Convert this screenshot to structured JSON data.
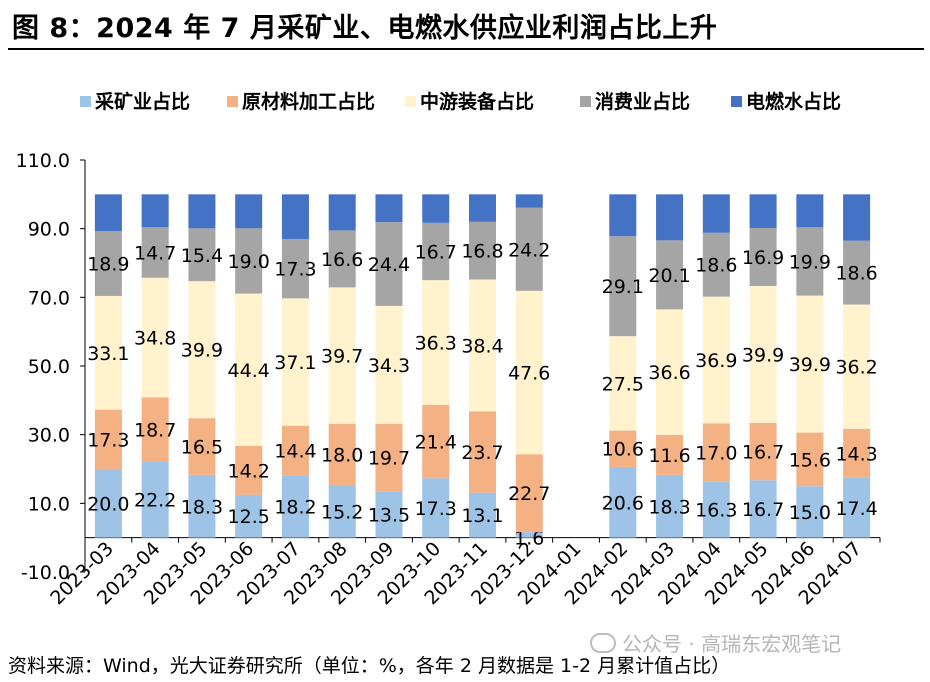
{
  "header": {
    "title": "图 8：2024 年 7 月采矿业、电燃水供应业利润占比上升"
  },
  "footer": {
    "source": "资料来源：Wind，光大证券研究所（单位：%，各年 2 月数据是 1-2 月累计值占比）",
    "watermark": "公众号 · 高瑞东宏观笔记"
  },
  "chart_data": {
    "type": "bar",
    "stacked": true,
    "title": "",
    "xlabel": "",
    "ylabel": "",
    "ylim": [
      -10.0,
      110.0
    ],
    "yticks": [
      "110.0",
      "90.0",
      "70.0",
      "50.0",
      "30.0",
      "10.0",
      "-10.0"
    ],
    "ytick_values": [
      110,
      90,
      70,
      50,
      30,
      10,
      -10
    ],
    "legend_position": "top",
    "categories": [
      "2023-03",
      "2023-04",
      "2023-05",
      "2023-06",
      "2023-07",
      "2023-08",
      "2023-09",
      "2023-10",
      "2023-11",
      "2023-12",
      "2024-01",
      "2024-02",
      "2024-03",
      "2024-04",
      "2024-05",
      "2024-06",
      "2024-07"
    ],
    "series": [
      {
        "name": "采矿业占比",
        "color": "#9dc3e6",
        "values": [
          20.0,
          22.2,
          18.3,
          12.5,
          18.2,
          15.2,
          13.5,
          17.3,
          13.1,
          1.6,
          null,
          20.6,
          18.3,
          16.3,
          16.7,
          15.0,
          17.4
        ],
        "labels": [
          "20.0",
          "22.2",
          "18.3",
          "12.5",
          "18.2",
          "15.2",
          "13.5",
          "17.3",
          "13.1",
          "1.6",
          "",
          "20.6",
          "18.3",
          "16.3",
          "16.7",
          "15.0",
          "17.4"
        ]
      },
      {
        "name": "原材料加工占比",
        "color": "#f4b183",
        "values": [
          17.3,
          18.7,
          16.5,
          14.2,
          14.4,
          18.0,
          19.7,
          21.4,
          23.7,
          22.7,
          null,
          10.6,
          11.6,
          17.0,
          16.7,
          15.6,
          14.3
        ],
        "labels": [
          "17.3",
          "18.7",
          "16.5",
          "14.2",
          "14.4",
          "18.0",
          "19.7",
          "21.4",
          "23.7",
          "22.7",
          "",
          "10.6",
          "11.6",
          "17.0",
          "16.7",
          "15.6",
          "14.3"
        ]
      },
      {
        "name": "中游装备占比",
        "color": "#fff2cc",
        "values": [
          33.1,
          34.8,
          39.9,
          44.4,
          37.1,
          39.7,
          34.3,
          36.3,
          38.4,
          47.6,
          null,
          27.5,
          36.6,
          36.9,
          39.9,
          39.9,
          36.2
        ],
        "labels": [
          "33.1",
          "34.8",
          "39.9",
          "44.4",
          "37.1",
          "39.7",
          "34.3",
          "36.3",
          "38.4",
          "47.6",
          "",
          "27.5",
          "36.6",
          "36.9",
          "39.9",
          "39.9",
          "36.2"
        ]
      },
      {
        "name": "消费业占比",
        "color": "#a5a5a5",
        "values": [
          18.9,
          14.7,
          15.4,
          19.0,
          17.3,
          16.6,
          24.4,
          16.7,
          16.8,
          24.2,
          null,
          29.1,
          20.1,
          18.6,
          16.9,
          19.9,
          18.6
        ],
        "labels": [
          "18.9",
          "14.7",
          "15.4",
          "19.0",
          "17.3",
          "16.6",
          "24.4",
          "16.7",
          "16.8",
          "24.2",
          "",
          "29.1",
          "20.1",
          "18.6",
          "16.9",
          "19.9",
          "18.6"
        ]
      },
      {
        "name": "电燃水占比",
        "color": "#4472c4",
        "values": [
          10.7,
          9.6,
          9.9,
          9.9,
          13.0,
          10.5,
          8.1,
          8.3,
          8.0,
          3.9,
          null,
          12.2,
          13.4,
          11.2,
          9.8,
          9.6,
          13.5
        ],
        "labels": [
          "",
          "",
          "",
          "",
          "",
          "",
          "",
          "",
          "",
          "",
          "",
          "",
          "",
          "",
          "",
          "",
          ""
        ]
      }
    ]
  }
}
